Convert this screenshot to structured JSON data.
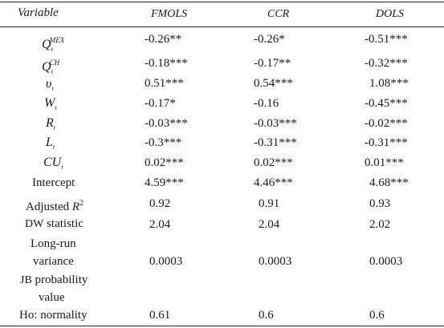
{
  "header": {
    "variable": "Variable",
    "col1": "FMOLS",
    "col2": "CCR",
    "col3": "DOLS"
  },
  "rows": [
    {
      "var_main": "Q",
      "var_sub": "t",
      "var_sup": "MEX",
      "c1": "-0.26**",
      "c2": "-0.26*",
      "c3": "-0.51***"
    },
    {
      "var_main": "Q",
      "var_sub": "t",
      "var_sup": "CH",
      "c1": "-0.18***",
      "c2": "-0.17**",
      "c3": "-0.32***"
    },
    {
      "var_main": "υ",
      "var_sub": "t",
      "var_sup": "",
      "c1": "0.51***",
      "c2": "0.54***",
      "c3": "1.08***"
    },
    {
      "var_main": "W",
      "var_sub": "t",
      "var_sup": "",
      "c1": "-0.17*",
      "c2": "-0.16",
      "c3": "-0.45***"
    },
    {
      "var_main": "R",
      "var_sub": "t",
      "var_sup": "",
      "c1": "-0.03***",
      "c2": "-0.03***",
      "c3": "-0.02***"
    },
    {
      "var_main": "L",
      "var_sub": "t",
      "var_sup": "",
      "c1": "-0.3***",
      "c2": "-0.31***",
      "c3": "-0.31***"
    },
    {
      "var_main": "CU",
      "var_sub": "t",
      "var_sup": "",
      "c1": "0.02***",
      "c2": "0.02***",
      "c3": "0.01***"
    },
    {
      "var_text": "Intercept",
      "c1": "4.59***",
      "c2": "4.46***",
      "c3": "4.68***"
    },
    {
      "var_text": "Adjusted ",
      "var_text_ital": "R",
      "var_text_sup": "2",
      "c1": "0.92",
      "c2": "0.91",
      "c3": "0.93"
    },
    {
      "var_sc": "DW",
      "var_text": " statistic",
      "c1": "2.04",
      "c2": "2.04",
      "c3": "2.02"
    },
    {
      "var_line1": "Long-run",
      "var_line2": "variance",
      "c1": "0.0003",
      "c2": "0.0003",
      "c3": "0.0003"
    },
    {
      "var_sc": "JB",
      "var_line1": " probability",
      "var_line2": "value",
      "c1": "",
      "c2": "",
      "c3": ""
    },
    {
      "var_text": "Ho: normality",
      "c1": "0.61",
      "c2": "0.6",
      "c3": "0.6"
    }
  ]
}
